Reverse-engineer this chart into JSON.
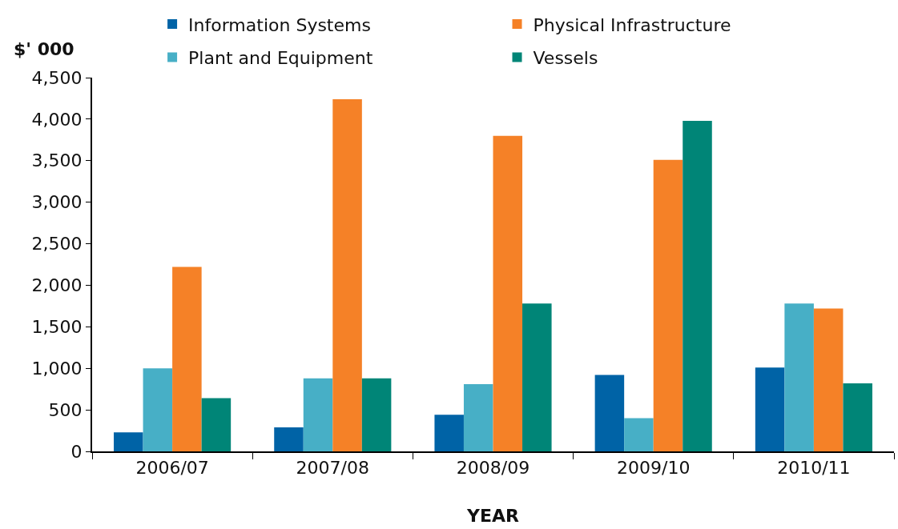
{
  "chart_data": {
    "type": "bar",
    "xlabel": "YEAR",
    "ylabel": "$' 000",
    "categories": [
      "2006/07",
      "2007/08",
      "2008/09",
      "2009/10",
      "2010/11"
    ],
    "series": [
      {
        "name": "Information Systems",
        "color": "#0063a6",
        "values": [
          230,
          290,
          440,
          920,
          1010
        ]
      },
      {
        "name": "Plant and Equipment",
        "color": "#47afc6",
        "values": [
          1000,
          880,
          810,
          400,
          1780
        ]
      },
      {
        "name": "Physical Infrastructure",
        "color": "#f58127",
        "values": [
          2220,
          4240,
          3800,
          3510,
          1720
        ]
      },
      {
        "name": "Vessels",
        "color": "#008577",
        "values": [
          640,
          880,
          1780,
          3980,
          820
        ]
      }
    ],
    "ylim": [
      0,
      4500
    ],
    "yticks": [
      0,
      500,
      {
        "value": 1000,
        "label": "1,000"
      },
      {
        "value": 1500,
        "label": "1,500"
      },
      {
        "value": 2000,
        "label": "2,000"
      },
      {
        "value": 2500,
        "label": "2,500"
      },
      {
        "value": 3000,
        "label": "3,000"
      },
      {
        "value": 3500,
        "label": "3,500"
      },
      {
        "value": 4000,
        "label": "4,000"
      },
      {
        "value": 4500,
        "label": "4,500"
      }
    ],
    "legend": "top"
  }
}
